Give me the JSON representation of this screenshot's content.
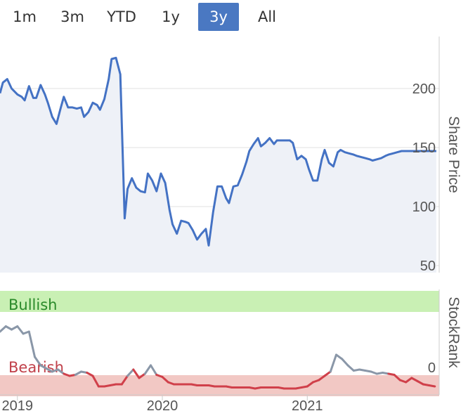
{
  "range_selector": {
    "buttons": [
      {
        "label": "1m"
      },
      {
        "label": "3m"
      },
      {
        "label": "YTD"
      },
      {
        "label": "1y"
      },
      {
        "label": "3y"
      },
      {
        "label": "All"
      }
    ],
    "active": "3y"
  },
  "chart_data": [
    {
      "type": "line",
      "ylabel": "Share Price",
      "ylim": [
        50,
        250
      ],
      "yticks": [
        "50",
        "100",
        "150",
        "200"
      ],
      "grid": true,
      "color": "#4472c4",
      "x": [
        2018.88,
        2018.9,
        2018.93,
        2018.96,
        2019.0,
        2019.03,
        2019.05,
        2019.08,
        2019.11,
        2019.13,
        2019.16,
        2019.19,
        2019.21,
        2019.24,
        2019.27,
        2019.3,
        2019.32,
        2019.35,
        2019.38,
        2019.41,
        2019.44,
        2019.46,
        2019.49,
        2019.52,
        2019.55,
        2019.57,
        2019.6,
        2019.63,
        2019.65,
        2019.68,
        2019.71,
        2019.74,
        2019.76,
        2019.79,
        2019.82,
        2019.85,
        2019.88,
        2019.9,
        2019.93,
        2019.96,
        2019.99,
        2020.02,
        2020.05,
        2020.07,
        2020.1,
        2020.13,
        2020.16,
        2020.18,
        2020.21,
        2020.24,
        2020.27,
        2020.3,
        2020.32,
        2020.35,
        2020.38,
        2020.41,
        2020.44,
        2020.46,
        2020.49,
        2020.52,
        2020.55,
        2020.58,
        2020.6,
        2020.63,
        2020.66,
        2020.68,
        2020.71,
        2020.74,
        2020.77,
        2020.79,
        2020.82,
        2020.85,
        2020.88,
        2020.9,
        2020.93,
        2020.96,
        2020.99,
        2021.01,
        2021.04,
        2021.07,
        2021.1,
        2021.12,
        2021.15,
        2021.18,
        2021.21,
        2021.23,
        2021.26,
        2021.29,
        2021.32,
        2021.34,
        2021.37,
        2021.4,
        2021.43,
        2021.45,
        2021.48,
        2021.51,
        2021.54,
        2021.56,
        2021.59,
        2021.62,
        2021.65,
        2021.67,
        2021.7,
        2021.73,
        2021.76,
        2021.78,
        2021.81,
        2021.84,
        2021.87,
        2021.89
      ],
      "values": [
        196,
        205,
        208,
        200,
        195,
        193,
        190,
        202,
        192,
        192,
        203,
        195,
        188,
        176,
        170,
        184,
        193,
        184,
        184,
        183,
        184,
        176,
        180,
        188,
        186,
        182,
        191,
        208,
        225,
        226,
        212,
        90,
        115,
        124,
        116,
        113,
        112,
        128,
        122,
        113,
        128,
        120,
        97,
        85,
        77,
        88,
        87,
        86,
        80,
        72,
        77,
        81,
        67,
        95,
        117,
        117,
        107,
        103,
        117,
        118,
        127,
        138,
        147,
        153,
        158,
        151,
        154,
        158,
        153,
        156,
        156,
        156,
        156,
        154,
        140,
        143,
        140,
        132,
        122,
        122,
        140,
        148,
        137,
        134,
        146,
        148,
        146,
        145,
        144,
        143,
        142,
        141,
        140,
        139,
        140,
        141,
        143,
        144,
        145,
        146,
        147,
        147,
        147,
        147,
        147,
        147,
        147,
        147,
        147,
        147
      ]
    },
    {
      "type": "line",
      "ylabel": "StockRank",
      "ylim": [
        0,
        100
      ],
      "yticks": [
        "0"
      ],
      "zones": [
        {
          "label": "Bullish",
          "from": 80,
          "to": 100,
          "color": "#c9f0b4",
          "text_color": "#2a8a2a"
        },
        {
          "label": "Bearish",
          "from": 0,
          "to": 20,
          "color": "#f2c8c4",
          "text_color": "#c0404a"
        }
      ],
      "high_color": "#8a97a8",
      "low_color": "#d0404a",
      "threshold": 20,
      "x": [
        2018.88,
        2018.92,
        2018.96,
        2019.0,
        2019.04,
        2019.08,
        2019.12,
        2019.16,
        2019.2,
        2019.24,
        2019.28,
        2019.32,
        2019.36,
        2019.4,
        2019.44,
        2019.48,
        2019.52,
        2019.56,
        2019.6,
        2019.64,
        2019.68,
        2019.72,
        2019.76,
        2019.8,
        2019.84,
        2019.88,
        2019.92,
        2019.96,
        2020.0,
        2020.04,
        2020.08,
        2020.12,
        2020.16,
        2020.2,
        2020.24,
        2020.28,
        2020.32,
        2020.36,
        2020.4,
        2020.44,
        2020.48,
        2020.52,
        2020.56,
        2020.6,
        2020.64,
        2020.68,
        2020.72,
        2020.76,
        2020.8,
        2020.84,
        2020.88,
        2020.92,
        2020.96,
        2021.0,
        2021.04,
        2021.08,
        2021.12,
        2021.16,
        2021.2,
        2021.24,
        2021.28,
        2021.32,
        2021.36,
        2021.4,
        2021.44,
        2021.48,
        2021.52,
        2021.56,
        2021.6,
        2021.64,
        2021.68,
        2021.72,
        2021.76,
        2021.8,
        2021.84,
        2021.88
      ],
      "values": [
        60,
        65,
        62,
        65,
        58,
        60,
        36,
        28,
        25,
        22,
        24,
        20,
        18,
        19,
        22,
        21,
        18,
        8,
        8,
        9,
        10,
        10,
        18,
        24,
        16,
        20,
        28,
        19,
        17,
        12,
        10,
        10,
        10,
        10,
        9,
        9,
        9,
        8,
        8,
        8,
        7,
        7,
        7,
        7,
        6,
        7,
        7,
        7,
        7,
        6,
        6,
        6,
        7,
        8,
        12,
        14,
        18,
        22,
        38,
        34,
        28,
        23,
        24,
        23,
        22,
        20,
        21,
        20,
        19,
        14,
        12,
        16,
        13,
        10,
        9,
        8
      ]
    }
  ],
  "x_axis": {
    "ticks": [
      "2019",
      "2020",
      "2021"
    ]
  }
}
